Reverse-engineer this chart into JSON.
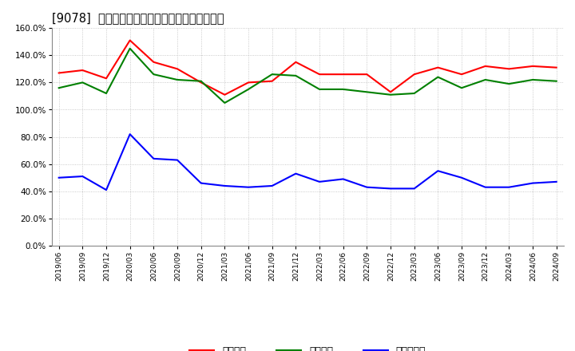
{
  "title": "[9078]  流動比率、当座比率、現預金比率の推移",
  "dates": [
    "2019/06",
    "2019/09",
    "2019/12",
    "2020/03",
    "2020/06",
    "2020/09",
    "2020/12",
    "2021/03",
    "2021/06",
    "2021/09",
    "2021/12",
    "2022/03",
    "2022/06",
    "2022/09",
    "2022/12",
    "2023/03",
    "2023/06",
    "2023/09",
    "2023/12",
    "2024/03",
    "2024/06",
    "2024/09"
  ],
  "ryudo": [
    127,
    129,
    123,
    151,
    135,
    130,
    120,
    111,
    120,
    121,
    135,
    126,
    126,
    126,
    113,
    126,
    131,
    126,
    132,
    130,
    132,
    131
  ],
  "toza": [
    116,
    120,
    112,
    145,
    126,
    122,
    121,
    105,
    115,
    126,
    125,
    115,
    115,
    113,
    111,
    112,
    124,
    116,
    122,
    119,
    122,
    121
  ],
  "genkin": [
    50,
    51,
    41,
    82,
    64,
    63,
    46,
    44,
    43,
    44,
    53,
    47,
    49,
    43,
    42,
    42,
    55,
    50,
    43,
    43,
    46,
    47
  ],
  "ryudo_color": "#ff0000",
  "toza_color": "#008000",
  "genkin_color": "#0000ff",
  "legend_labels": [
    "流動比率",
    "当座比率",
    "現預金比率"
  ],
  "ylim": [
    0,
    160
  ],
  "yticks": [
    0,
    20,
    40,
    60,
    80,
    100,
    120,
    140,
    160
  ],
  "bg_color": "#ffffff",
  "grid_color": "#bbbbbb",
  "title_fontsize": 10.5,
  "linewidth": 1.5
}
